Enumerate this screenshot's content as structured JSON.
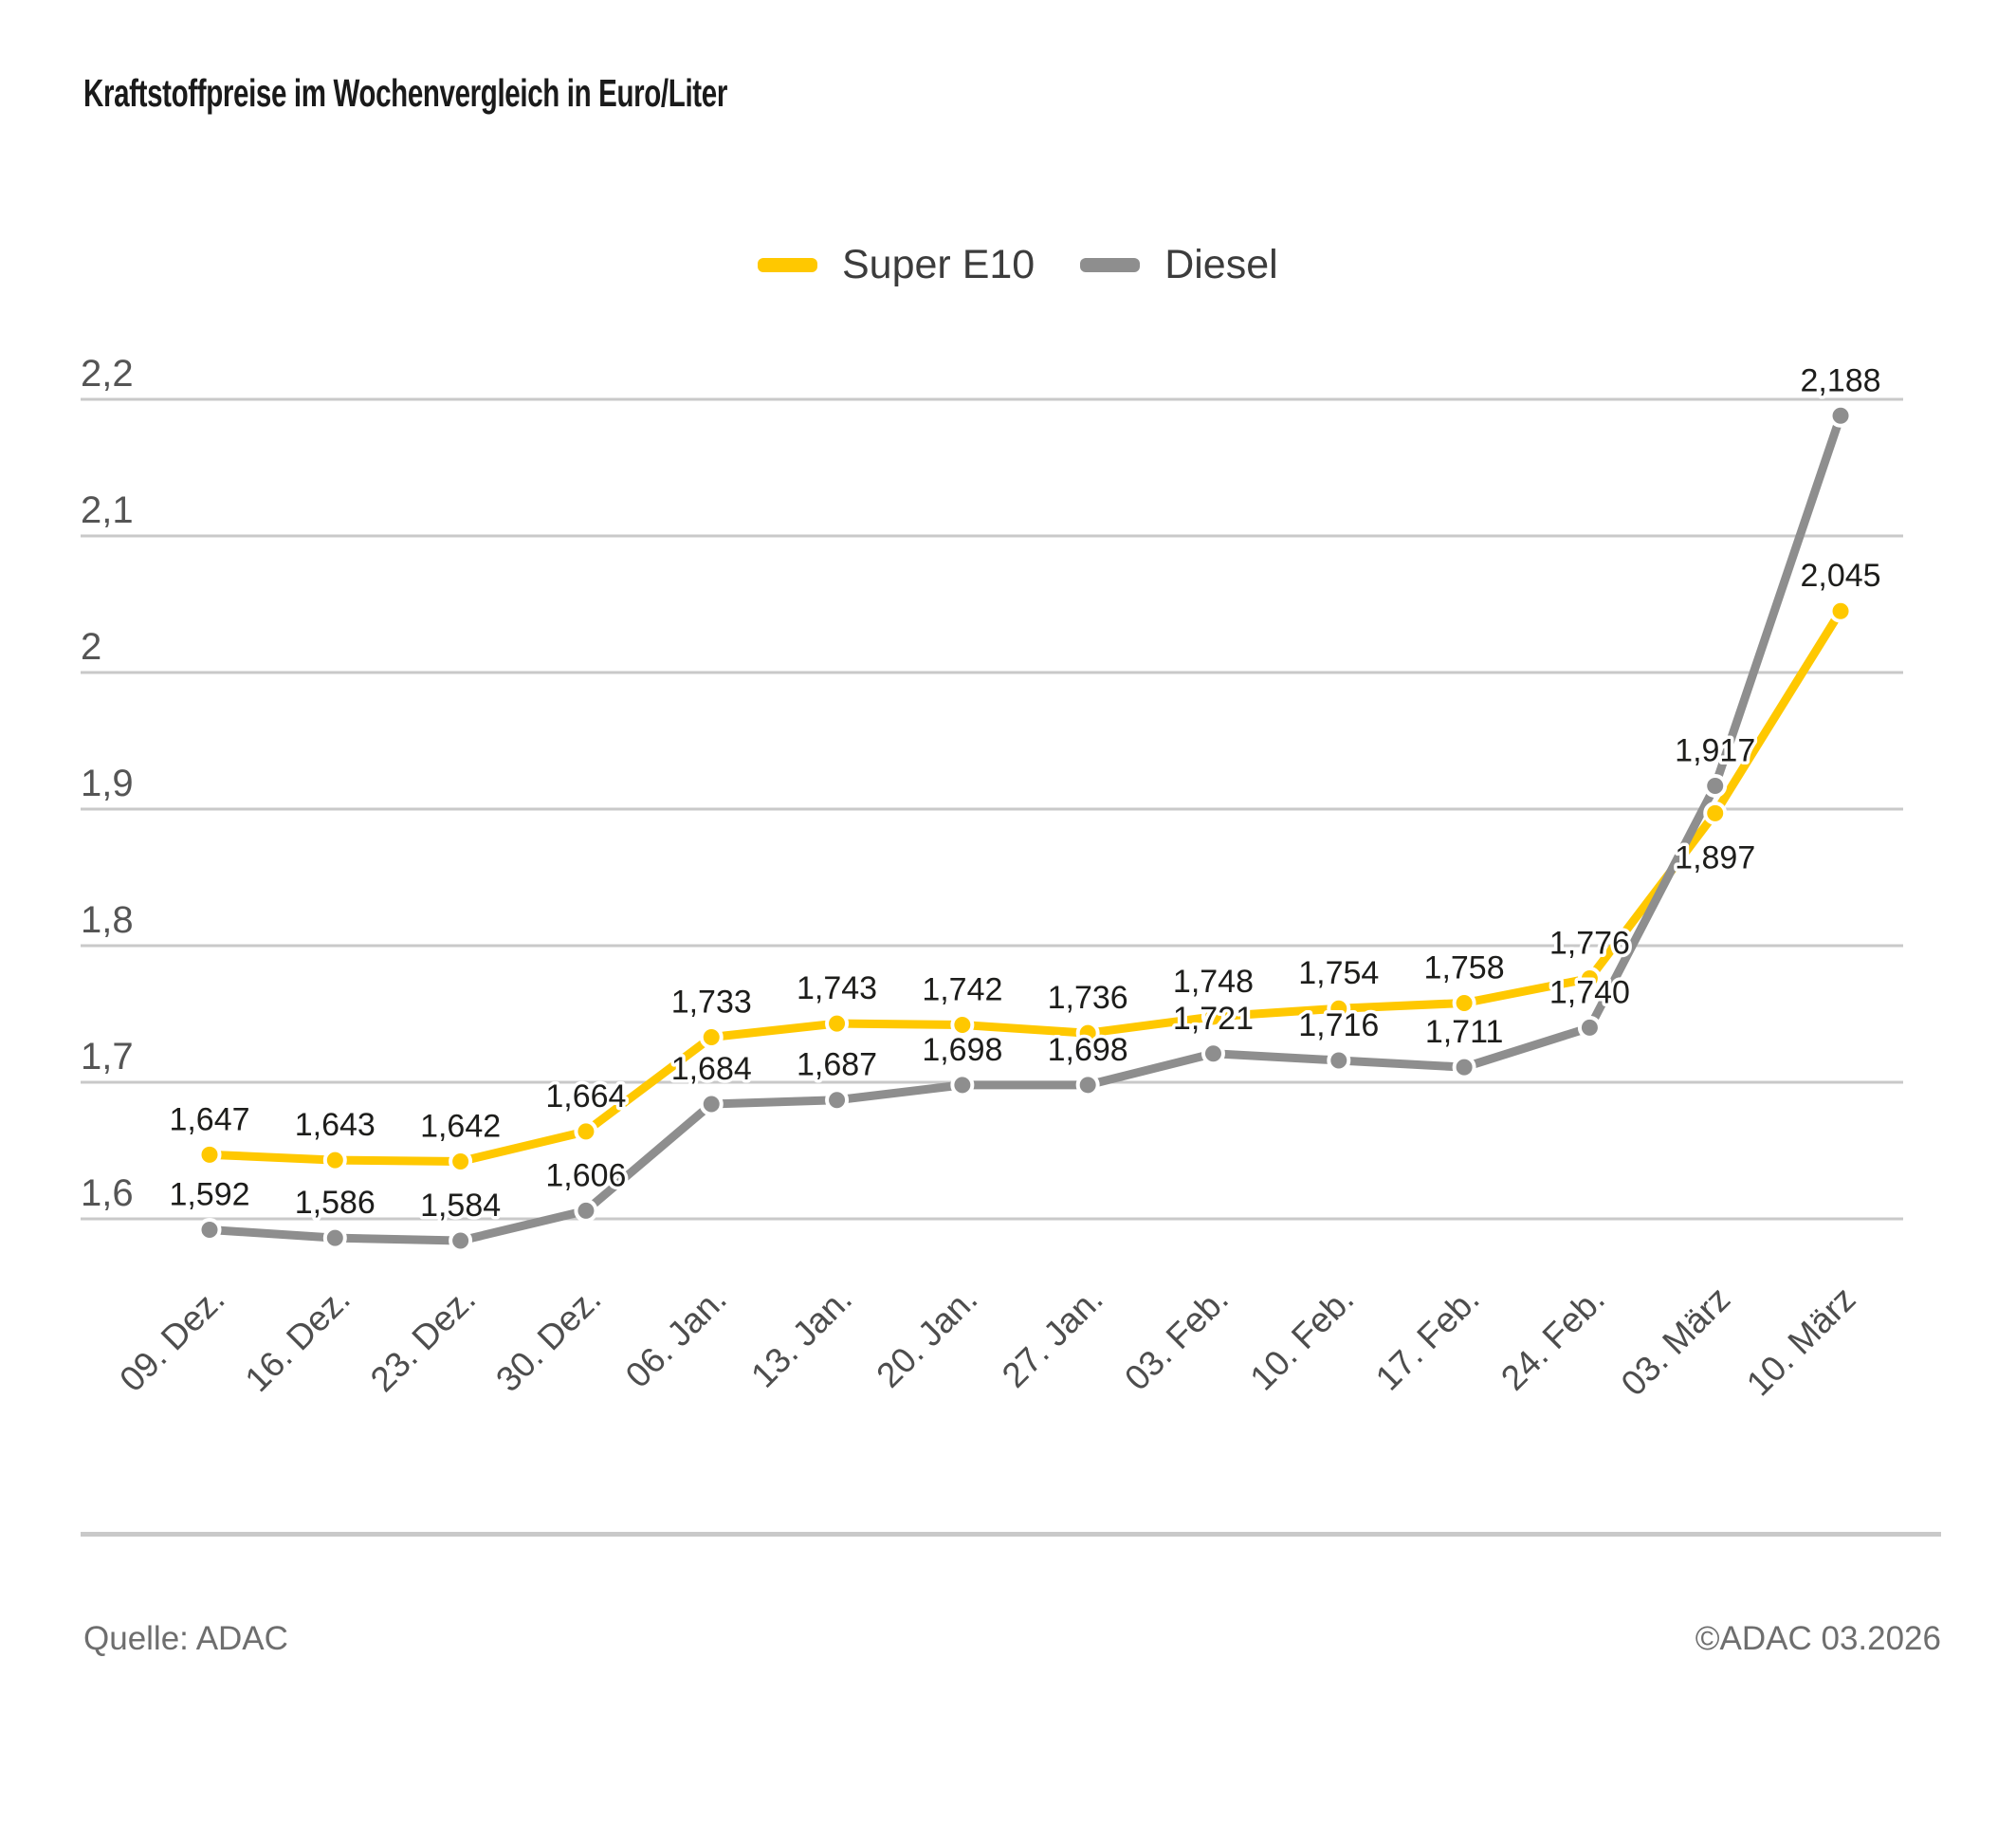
{
  "title": "Kraftstoffpreise im Wochenvergleich in Euro/Liter",
  "legend": {
    "items": [
      {
        "label": "Super E10",
        "color": "#FFC800"
      },
      {
        "label": "Diesel",
        "color": "#8E8E8E"
      }
    ]
  },
  "footer": {
    "source": "Quelle: ADAC",
    "copyright": "©ADAC 03.2026"
  },
  "chart_data": {
    "type": "line",
    "title": "Kraftstoffpreise im Wochenvergleich in Euro/Liter",
    "unit": "Euro/Liter",
    "categories": [
      "09. Dez.",
      "16. Dez.",
      "23. Dez.",
      "30. Dez.",
      "06. Jan.",
      "13. Jan.",
      "20. Jan.",
      "27. Jan.",
      "03. Feb.",
      "10. Feb.",
      "17. Feb.",
      "24. Feb.",
      "03. März",
      "10. März"
    ],
    "series": [
      {
        "name": "Super E10",
        "color": "#FFC800",
        "values": [
          1.647,
          1.643,
          1.642,
          1.664,
          1.733,
          1.743,
          1.742,
          1.736,
          1.748,
          1.754,
          1.758,
          1.776,
          1.897,
          2.045
        ],
        "labels": [
          "1,647",
          "1,643",
          "1,642",
          "1,664",
          "1,733",
          "1,743",
          "1,742",
          "1,736",
          "1,748",
          "1,754",
          "1,758",
          "1,776",
          "1,897",
          "2,045"
        ]
      },
      {
        "name": "Diesel",
        "color": "#8E8E8E",
        "values": [
          1.592,
          1.586,
          1.584,
          1.606,
          1.684,
          1.687,
          1.698,
          1.698,
          1.721,
          1.716,
          1.711,
          1.74,
          1.917,
          2.188
        ],
        "labels": [
          "1,592",
          "1,586",
          "1,584",
          "1,606",
          "1,684",
          "1,687",
          "1,698",
          "1,698",
          "1,721",
          "1,716",
          "1,711",
          "1,740",
          "1,917",
          "2,188"
        ]
      }
    ],
    "y_ticks": [
      {
        "label": "2,2",
        "value": 2.2
      },
      {
        "label": "2,1",
        "value": 2.1
      },
      {
        "label": "2",
        "value": 2.0
      },
      {
        "label": "1,9",
        "value": 1.9
      },
      {
        "label": "1,8",
        "value": 1.8
      },
      {
        "label": "1,7",
        "value": 1.7
      },
      {
        "label": "1,6",
        "value": 1.6
      }
    ],
    "ylim": [
      1.55,
      2.25
    ],
    "grid": true,
    "legend_position": "top-center",
    "x_tick_rotation": 45
  }
}
